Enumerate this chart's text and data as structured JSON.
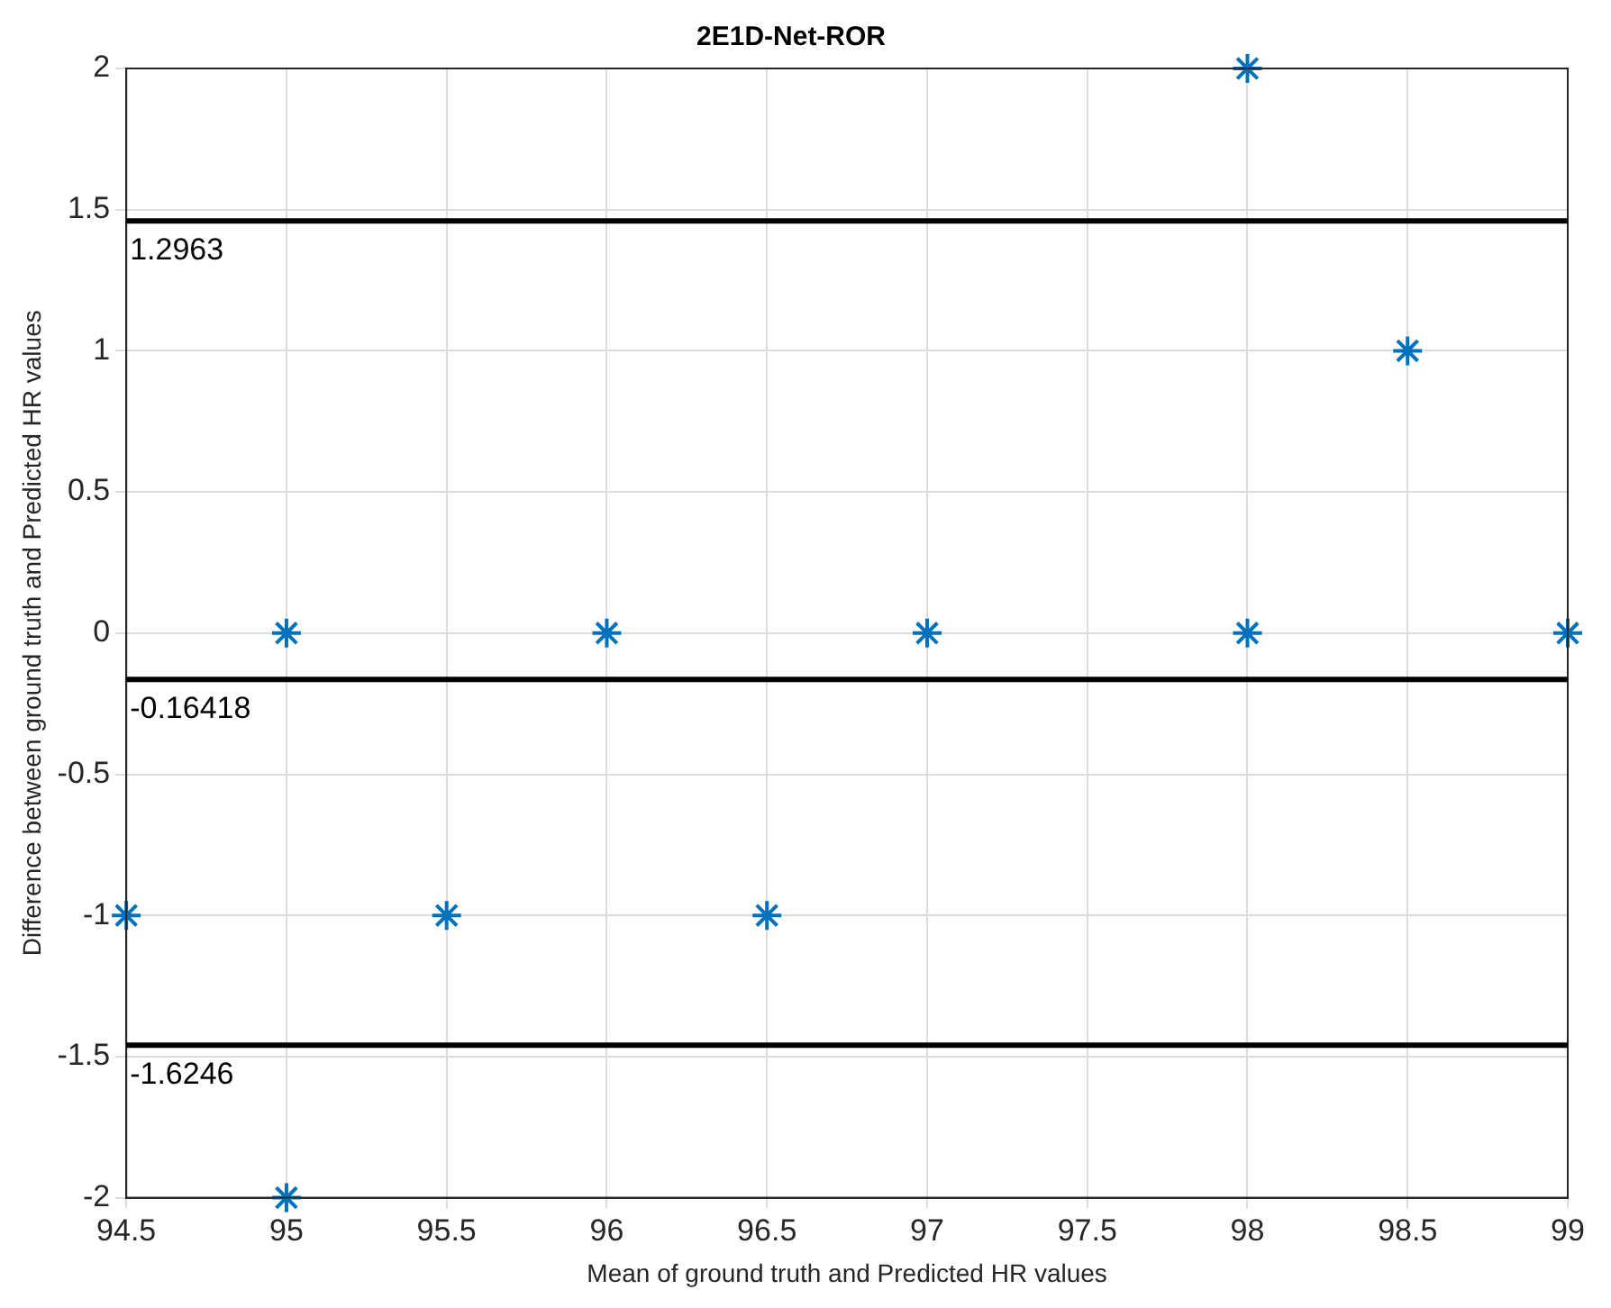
{
  "chart_data": {
    "type": "scatter",
    "title": "2E1D-Net-ROR",
    "xlabel": "Mean of ground truth and Predicted HR values",
    "ylabel": "Difference between ground truth and Predicted HR values",
    "x": [
      94.5,
      95,
      95,
      95.5,
      96,
      96.5,
      97,
      98,
      98,
      98.5,
      99
    ],
    "series": [
      {
        "color": "#0072bd",
        "values": [
          -1,
          0,
          -2,
          -1,
          0,
          -1,
          0,
          2,
          0,
          1,
          0
        ]
      }
    ],
    "marker": "cross",
    "grid": true,
    "xlim": [
      94.5,
      99
    ],
    "xticks": [
      94.5,
      95,
      95.5,
      96,
      96.5,
      97,
      97.5,
      98,
      98.5,
      99
    ],
    "ylim": [
      -2,
      2
    ],
    "yticks": [
      -2,
      -1.5,
      -1,
      -0.5,
      0,
      0.5,
      1,
      1.5,
      2
    ],
    "ref_lines": [
      {
        "axis": "y",
        "value": 1.46,
        "color": "#000000"
      },
      {
        "axis": "y",
        "value": -0.16418,
        "label": "-0.16418",
        "color": "#000000"
      },
      {
        "axis": "y",
        "value": -1.46,
        "color": "#000000"
      }
    ],
    "annotations": [
      {
        "text": "1.2963",
        "x": 94.5,
        "y": 1.46
      },
      {
        "text": "-1.6246",
        "x": 94.5,
        "y": -1.46
      }
    ]
  }
}
